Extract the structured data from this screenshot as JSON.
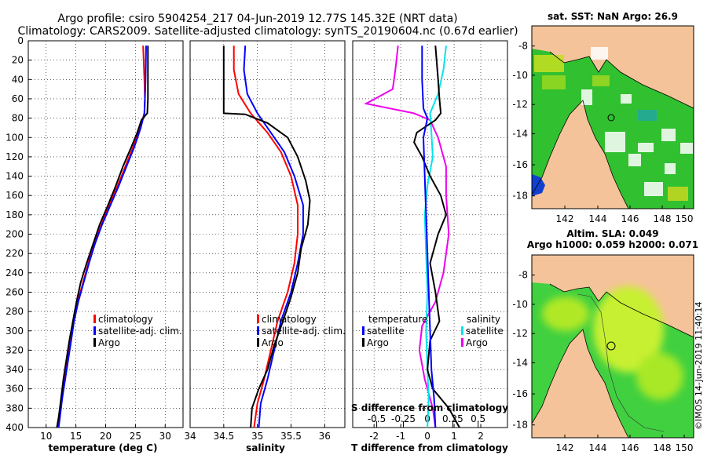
{
  "header": {
    "line1": "Argo profile: csiro 5904254_217 04-Jun-2019 12.77S 145.32E (NRT data)",
    "line2": "Climatology: CARS2009. Satellite-adjusted climatology: synTS_20190604.nc (0.67d earlier)"
  },
  "colors": {
    "climatology": "#ff0000",
    "satellite": "#0000ff",
    "argo": "#000000",
    "s_satellite": "#00e5ee",
    "s_argo": "#ee00ee",
    "land": "#f5c39a"
  },
  "credit": "©IMOS 14-Jun-2019 11:40:14",
  "chart_data": [
    {
      "type": "line",
      "name": "temperature",
      "xlabel": "temperature (deg C)",
      "xlim": [
        7,
        33
      ],
      "ylim": [
        400,
        0
      ],
      "xticks": [
        10,
        15,
        20,
        25,
        30
      ],
      "yticks": [
        0,
        20,
        40,
        60,
        80,
        100,
        120,
        140,
        160,
        180,
        200,
        220,
        240,
        260,
        280,
        300,
        320,
        340,
        360,
        380,
        400
      ],
      "legend": [
        "climatology",
        "satellite-adj. clim.",
        "Argo"
      ],
      "series": [
        {
          "name": "climatology",
          "color": "#ff0000",
          "points": [
            [
              26.3,
              5
            ],
            [
              26.5,
              40
            ],
            [
              26.6,
              60
            ],
            [
              26.5,
              75
            ],
            [
              25.8,
              90
            ],
            [
              24.6,
              110
            ],
            [
              23.3,
              130
            ],
            [
              22.0,
              150
            ],
            [
              20.6,
              170
            ],
            [
              19.3,
              190
            ],
            [
              18.1,
              210
            ],
            [
              17.1,
              230
            ],
            [
              16.2,
              250
            ],
            [
              15.3,
              270
            ],
            [
              14.6,
              290
            ],
            [
              14.1,
              310
            ],
            [
              13.6,
              330
            ],
            [
              13.1,
              350
            ],
            [
              12.6,
              370
            ],
            [
              12.1,
              390
            ],
            [
              11.8,
              400
            ]
          ]
        },
        {
          "name": "satellite-adj. clim.",
          "color": "#0000ff",
          "points": [
            [
              26.8,
              5
            ],
            [
              26.7,
              40
            ],
            [
              26.6,
              60
            ],
            [
              26.5,
              75
            ],
            [
              25.9,
              90
            ],
            [
              24.8,
              110
            ],
            [
              23.5,
              130
            ],
            [
              22.2,
              150
            ],
            [
              20.8,
              170
            ],
            [
              19.4,
              190
            ],
            [
              18.2,
              210
            ],
            [
              17.2,
              230
            ],
            [
              16.3,
              250
            ],
            [
              15.4,
              270
            ],
            [
              14.7,
              290
            ],
            [
              14.2,
              310
            ],
            [
              13.7,
              330
            ],
            [
              13.2,
              350
            ],
            [
              12.7,
              370
            ],
            [
              12.3,
              390
            ],
            [
              12.1,
              400
            ]
          ]
        },
        {
          "name": "Argo",
          "color": "#000000",
          "points": [
            [
              27.1,
              5
            ],
            [
              27.1,
              40
            ],
            [
              27.1,
              60
            ],
            [
              27.0,
              75
            ],
            [
              26.0,
              82
            ],
            [
              25.3,
              95
            ],
            [
              24.3,
              110
            ],
            [
              22.9,
              130
            ],
            [
              21.7,
              150
            ],
            [
              20.4,
              170
            ],
            [
              19.0,
              190
            ],
            [
              17.9,
              210
            ],
            [
              16.8,
              230
            ],
            [
              15.8,
              250
            ],
            [
              15.1,
              270
            ],
            [
              14.5,
              290
            ],
            [
              13.9,
              310
            ],
            [
              13.4,
              330
            ],
            [
              12.9,
              350
            ],
            [
              12.5,
              370
            ],
            [
              12.1,
              390
            ],
            [
              11.8,
              400
            ]
          ]
        }
      ]
    },
    {
      "type": "line",
      "name": "salinity",
      "xlabel": "salinity",
      "xlim": [
        34,
        36.3
      ],
      "ylim": [
        400,
        0
      ],
      "xticks": [
        34,
        34.5,
        35,
        35.5,
        36
      ],
      "xticklabels": [
        "34",
        "34.5",
        "35",
        "35.5",
        "36"
      ],
      "legend": [
        "climatology",
        "satellite-adj. clim.",
        "Argo"
      ],
      "series": [
        {
          "name": "climatology",
          "color": "#ff0000",
          "points": [
            [
              34.65,
              5
            ],
            [
              34.65,
              30
            ],
            [
              34.72,
              55
            ],
            [
              34.9,
              75
            ],
            [
              35.15,
              95
            ],
            [
              35.35,
              115
            ],
            [
              35.5,
              140
            ],
            [
              35.6,
              170
            ],
            [
              35.6,
              200
            ],
            [
              35.55,
              230
            ],
            [
              35.45,
              260
            ],
            [
              35.3,
              290
            ],
            [
              35.2,
              320
            ],
            [
              35.1,
              350
            ],
            [
              35.0,
              375
            ],
            [
              34.95,
              400
            ]
          ]
        },
        {
          "name": "satellite-adj. clim.",
          "color": "#0000ff",
          "points": [
            [
              34.82,
              5
            ],
            [
              34.8,
              30
            ],
            [
              34.85,
              55
            ],
            [
              35.0,
              75
            ],
            [
              35.2,
              95
            ],
            [
              35.4,
              115
            ],
            [
              35.55,
              140
            ],
            [
              35.68,
              170
            ],
            [
              35.68,
              200
            ],
            [
              35.6,
              230
            ],
            [
              35.5,
              260
            ],
            [
              35.35,
              290
            ],
            [
              35.25,
              320
            ],
            [
              35.15,
              350
            ],
            [
              35.05,
              375
            ],
            [
              35.02,
              400
            ]
          ]
        },
        {
          "name": "Argo",
          "color": "#000000",
          "points": [
            [
              34.5,
              5
            ],
            [
              34.5,
              50
            ],
            [
              34.5,
              75
            ],
            [
              34.82,
              76
            ],
            [
              35.15,
              85
            ],
            [
              35.45,
              100
            ],
            [
              35.6,
              120
            ],
            [
              35.72,
              145
            ],
            [
              35.78,
              165
            ],
            [
              35.75,
              190
            ],
            [
              35.65,
              215
            ],
            [
              35.6,
              240
            ],
            [
              35.5,
              265
            ],
            [
              35.38,
              290
            ],
            [
              35.25,
              315
            ],
            [
              35.15,
              340
            ],
            [
              35.02,
              360
            ],
            [
              34.92,
              380
            ],
            [
              34.9,
              400
            ]
          ]
        }
      ]
    },
    {
      "type": "line",
      "name": "differences",
      "xlabel": "T difference from climatology",
      "xlabel_top": "S difference from climatology",
      "xlim": [
        -2.8,
        3.0
      ],
      "ylim": [
        400,
        0
      ],
      "xticks": [
        -2,
        -1,
        0,
        1,
        2
      ],
      "s_ticks": [
        {
          "t": -1.9,
          "label": "-0.5"
        },
        {
          "t": -0.9,
          "label": "-0.25"
        },
        {
          "t": 0.0,
          "label": "0"
        },
        {
          "t": 0.95,
          "label": "0.25"
        },
        {
          "t": 1.9,
          "label": "0.5"
        }
      ],
      "legend_left_title": "temperature",
      "legend_right_title": "salinity",
      "legend_left": [
        "satellite",
        "Argo"
      ],
      "legend_right": [
        "satellite",
        "Argo"
      ],
      "series": [
        {
          "name": "T satellite",
          "color": "#0000ff",
          "points": [
            [
              -0.2,
              5
            ],
            [
              -0.2,
              40
            ],
            [
              -0.15,
              70
            ],
            [
              0.0,
              80
            ],
            [
              -0.15,
              100
            ],
            [
              -0.1,
              140
            ],
            [
              -0.05,
              180
            ],
            [
              0.0,
              220
            ],
            [
              0.05,
              260
            ],
            [
              0.1,
              300
            ],
            [
              0.15,
              340
            ],
            [
              0.25,
              370
            ],
            [
              0.3,
              400
            ]
          ]
        },
        {
          "name": "T Argo",
          "color": "#000000",
          "points": [
            [
              0.3,
              5
            ],
            [
              0.4,
              40
            ],
            [
              0.45,
              60
            ],
            [
              0.5,
              75
            ],
            [
              0.3,
              82
            ],
            [
              -0.4,
              95
            ],
            [
              -0.5,
              105
            ],
            [
              -0.2,
              120
            ],
            [
              0.1,
              140
            ],
            [
              0.5,
              160
            ],
            [
              0.7,
              180
            ],
            [
              0.4,
              200
            ],
            [
              0.1,
              230
            ],
            [
              0.3,
              260
            ],
            [
              0.45,
              290
            ],
            [
              0.1,
              310
            ],
            [
              0.0,
              340
            ],
            [
              0.2,
              360
            ],
            [
              0.8,
              380
            ],
            [
              1.2,
              400
            ]
          ]
        },
        {
          "name": "S satellite",
          "color": "#00e5ee",
          "points": [
            [
              0.7,
              5
            ],
            [
              0.6,
              30
            ],
            [
              0.4,
              55
            ],
            [
              0.1,
              75
            ],
            [
              0.15,
              95
            ],
            [
              0.2,
              120
            ],
            [
              0.0,
              150
            ],
            [
              -0.1,
              180
            ],
            [
              -0.05,
              220
            ],
            [
              0.0,
              260
            ],
            [
              -0.05,
              300
            ],
            [
              0.0,
              340
            ],
            [
              0.05,
              370
            ],
            [
              0.0,
              400
            ]
          ]
        },
        {
          "name": "S Argo",
          "color": "#ee00ee",
          "points": [
            [
              -1.1,
              5
            ],
            [
              -1.2,
              30
            ],
            [
              -1.3,
              50
            ],
            [
              -2.3,
              65
            ],
            [
              -0.5,
              75
            ],
            [
              0.1,
              82
            ],
            [
              0.4,
              100
            ],
            [
              0.7,
              130
            ],
            [
              0.7,
              160
            ],
            [
              0.8,
              200
            ],
            [
              0.6,
              240
            ],
            [
              0.3,
              270
            ],
            [
              -0.2,
              295
            ],
            [
              -0.3,
              320
            ],
            [
              -0.1,
              350
            ],
            [
              0.2,
              380
            ],
            [
              0.3,
              400
            ]
          ]
        }
      ]
    },
    {
      "type": "heatmap",
      "name": "sst-map",
      "title": "sat. SST: NaN Argo: 26.9",
      "xticks": [
        "142",
        "144",
        "146",
        "148",
        "150"
      ],
      "yticks": [
        "-8",
        "-10",
        "-12",
        "-14",
        "-16",
        "-18"
      ],
      "marker": {
        "lon": 145.32,
        "lat": -12.77
      }
    },
    {
      "type": "heatmap",
      "name": "sla-map",
      "title": "Altim. SLA: 0.049",
      "subtitle": "Argo h1000: 0.059 h2000: 0.071",
      "xticks": [
        "142",
        "144",
        "146",
        "148",
        "150"
      ],
      "yticks": [
        "-8",
        "-10",
        "-12",
        "-14",
        "-16",
        "-18"
      ],
      "marker": {
        "lon": 145.32,
        "lat": -12.77
      }
    }
  ]
}
